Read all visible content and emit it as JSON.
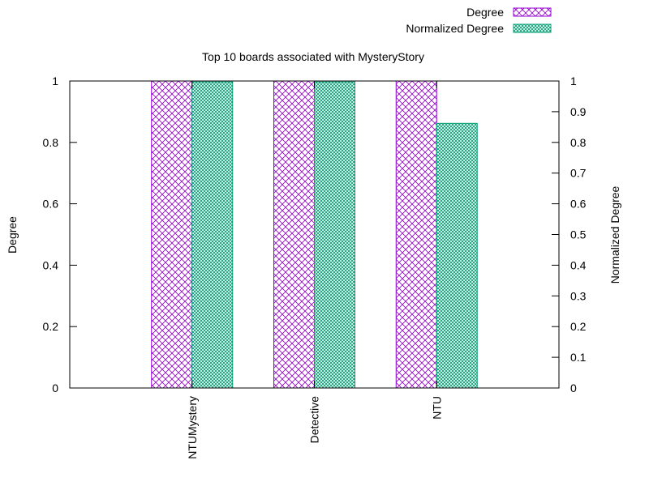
{
  "chart_data": {
    "type": "bar",
    "title": "Top 10 boards associated with MysteryStory",
    "categories": [
      "NTUMystery",
      "Detective",
      "NTU"
    ],
    "series": [
      {
        "name": "Degree",
        "axis": "left",
        "color": "#9400d3",
        "pattern": "crosshatch",
        "values": [
          1,
          1,
          1
        ]
      },
      {
        "name": "Normalized Degree",
        "axis": "right",
        "color": "#009e73",
        "pattern": "fine-mesh",
        "values": [
          0.997,
          0.997,
          0.862
        ]
      }
    ],
    "ylabel": "Degree",
    "y2label": "Normalized Degree",
    "xlabel": "",
    "ylim": [
      0,
      1
    ],
    "y2lim": [
      0,
      1
    ],
    "yticks": [
      "0",
      "0.2",
      "0.4",
      "0.6",
      "0.8",
      "1"
    ],
    "y2ticks": [
      "0",
      "0.1",
      "0.2",
      "0.3",
      "0.4",
      "0.5",
      "0.6",
      "0.7",
      "0.8",
      "0.9",
      "1"
    ],
    "grid": false,
    "legend": "top-right"
  }
}
